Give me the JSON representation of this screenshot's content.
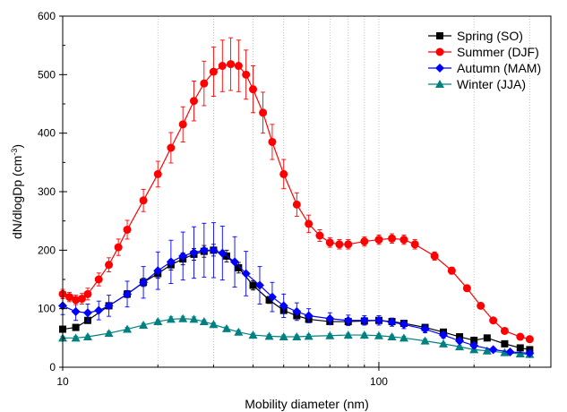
{
  "chart_data": {
    "type": "scatter",
    "xlabel": "Mobility diameter (nm)",
    "ylabel": "dN/dlogDp (cm",
    "ylabel_sup": "-3",
    "ylabel_close": ")",
    "x_scale": "log",
    "xlim": [
      10,
      350
    ],
    "ylim": [
      0,
      600
    ],
    "grid": "vertical dotted",
    "legend_position": "top-right",
    "x_ticks": [
      {
        "value": 10,
        "label": "10"
      },
      {
        "value": 100,
        "label": "100"
      }
    ],
    "y_ticks": [
      {
        "value": 0,
        "label": "0"
      },
      {
        "value": 100,
        "label": "100"
      },
      {
        "value": 200,
        "label": "200"
      },
      {
        "value": 300,
        "label": "300"
      },
      {
        "value": 400,
        "label": "400"
      },
      {
        "value": 500,
        "label": "500"
      },
      {
        "value": 600,
        "label": "600"
      }
    ],
    "series": [
      {
        "name": "Spring (SO)",
        "color": "#000000",
        "marker": "square",
        "x": [
          10,
          11,
          12,
          14,
          16,
          18,
          20,
          22,
          24,
          26,
          28,
          30,
          33,
          36,
          40,
          45,
          50,
          55,
          60,
          70,
          80,
          90,
          100,
          110,
          120,
          140,
          160,
          180,
          200,
          220,
          250,
          280,
          300
        ],
        "y": [
          65,
          68,
          80,
          105,
          125,
          145,
          160,
          175,
          185,
          193,
          198,
          200,
          190,
          170,
          140,
          115,
          97,
          88,
          82,
          78,
          78,
          79,
          80,
          78,
          75,
          68,
          60,
          52,
          46,
          50,
          40,
          33,
          30
        ],
        "err": [
          3,
          3,
          4,
          5,
          6,
          7,
          8,
          9,
          10,
          10,
          10,
          10,
          10,
          9,
          8,
          6,
          5,
          4,
          4,
          4,
          4,
          4,
          4,
          4,
          4,
          3,
          3,
          3,
          3,
          3,
          2,
          2,
          2
        ]
      },
      {
        "name": "Summer (DJF)",
        "color": "#ff0000",
        "marker": "circle",
        "x": [
          10,
          10.5,
          11,
          11.5,
          12,
          13,
          14,
          15,
          16,
          18,
          20,
          22,
          24,
          26,
          28,
          30,
          32,
          34,
          36,
          38,
          40,
          43,
          46,
          50,
          55,
          60,
          65,
          70,
          75,
          80,
          90,
          100,
          110,
          120,
          130,
          150,
          170,
          190,
          210,
          230,
          250,
          280,
          300
        ],
        "y": [
          125,
          120,
          115,
          117,
          125,
          150,
          175,
          205,
          235,
          285,
          330,
          375,
          415,
          455,
          485,
          505,
          515,
          518,
          515,
          500,
          475,
          435,
          385,
          330,
          278,
          245,
          225,
          213,
          210,
          210,
          215,
          218,
          220,
          218,
          210,
          190,
          165,
          135,
          105,
          80,
          62,
          52,
          48
        ],
        "err": [
          8,
          8,
          8,
          9,
          10,
          11,
          12,
          14,
          16,
          19,
          22,
          26,
          30,
          34,
          38,
          42,
          44,
          45,
          44,
          42,
          40,
          35,
          30,
          25,
          20,
          15,
          10,
          8,
          8,
          8,
          8,
          8,
          8,
          8,
          8,
          7,
          6,
          5,
          4,
          4,
          3,
          3,
          3
        ]
      },
      {
        "name": "Autumn (MAM)",
        "color": "#0000ff",
        "marker": "diamond",
        "x": [
          10,
          11,
          12,
          13,
          14,
          16,
          18,
          20,
          22,
          24,
          26,
          28,
          30,
          32,
          35,
          38,
          42,
          46,
          50,
          55,
          60,
          70,
          80,
          90,
          100,
          110,
          120,
          140,
          160,
          180,
          200,
          230,
          260,
          300
        ],
        "y": [
          105,
          95,
          93,
          97,
          105,
          125,
          145,
          165,
          180,
          190,
          196,
          200,
          200,
          195,
          180,
          160,
          140,
          120,
          105,
          95,
          88,
          83,
          80,
          80,
          80,
          77,
          73,
          65,
          55,
          45,
          37,
          30,
          26,
          24
        ],
        "err": [
          15,
          15,
          15,
          16,
          18,
          22,
          27,
          32,
          37,
          41,
          44,
          46,
          47,
          46,
          43,
          38,
          32,
          25,
          20,
          15,
          12,
          10,
          9,
          8,
          8,
          7,
          7,
          6,
          5,
          4,
          4,
          3,
          3,
          3
        ]
      },
      {
        "name": "Winter (JJA)",
        "color": "#008080",
        "marker": "triangle",
        "x": [
          10,
          11,
          12,
          14,
          16,
          18,
          20,
          22,
          24,
          26,
          28,
          30,
          33,
          36,
          40,
          45,
          50,
          55,
          60,
          70,
          80,
          90,
          100,
          110,
          120,
          140,
          160,
          180,
          200,
          220,
          250,
          280,
          300
        ],
        "y": [
          50,
          50,
          52,
          58,
          65,
          72,
          78,
          82,
          83,
          82,
          78,
          73,
          66,
          60,
          55,
          53,
          52,
          52,
          53,
          54,
          55,
          55,
          54,
          52,
          50,
          45,
          40,
          35,
          30,
          28,
          25,
          23,
          22
        ],
        "err": [
          3,
          3,
          3,
          3,
          3,
          3,
          3,
          4,
          4,
          4,
          3,
          3,
          3,
          3,
          3,
          3,
          3,
          3,
          3,
          3,
          3,
          3,
          3,
          3,
          3,
          3,
          2,
          2,
          2,
          2,
          2,
          2,
          2
        ]
      }
    ]
  }
}
